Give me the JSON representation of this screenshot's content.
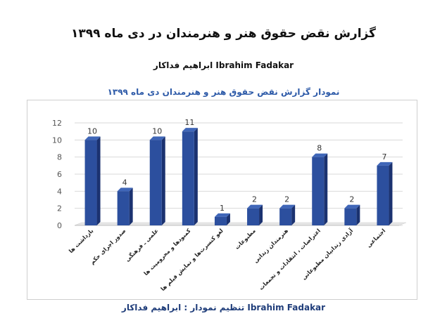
{
  "page": {
    "title": "گزارش نقض حقوق هنر و هنرمندان در دی ماه ۱۳۹۹",
    "author": "ابراهیم فداکار   Ibrahim Fadakar",
    "chart_title": "نمودار گزارش نقض حقوق هنر و هنرمندان دی ماه ۱۳۹۹",
    "footer": "تنظیم نمودار : ابراهیم فداکار  Ibrahim Fadakar"
  },
  "colors": {
    "bar_front": "#2c4f9e",
    "bar_side": "#1b3270",
    "bar_top": "#3f66b8",
    "chart_title": "#2d5aa8",
    "footer": "#1f3d7a"
  },
  "chart_data": {
    "type": "bar",
    "title": "نمودار گزارش نقض حقوق هنر و هنرمندان دی ماه ۱۳۹۹",
    "xlabel": "",
    "ylabel": "",
    "ylim": [
      0,
      12
    ],
    "yticks": [
      0,
      2,
      4,
      6,
      8,
      10,
      12
    ],
    "grid": true,
    "legend": "none",
    "categories": [
      "بازداشت ها",
      "صدور اجرای حکم",
      "علمی ـ فرهنگی",
      "کمبودها و محرومیت ها",
      "لغو کنسرت‌ها و نمایش فیلم ها",
      "مطبوعات",
      "هنرمندان زندانی",
      "اعتراضات ، انتقادات و تجمعات",
      "آزادی زندانیان مطبوعاتی",
      "اجتماعی"
    ],
    "values": [
      10,
      4,
      10,
      11,
      1,
      2,
      2,
      8,
      2,
      7
    ]
  }
}
